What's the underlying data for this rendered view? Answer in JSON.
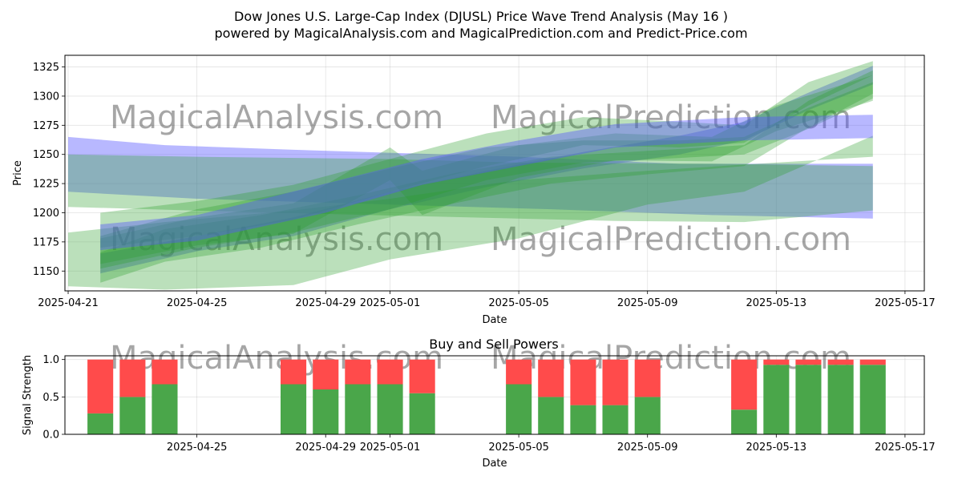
{
  "title_line1": "Dow Jones U.S. Large-Cap Index (DJUSL) Price Wave Trend Analysis (May 16 )",
  "title_line2": "powered by MagicalAnalysis.com and MagicalPrediction.com and Predict-Price.com",
  "watermarks": [
    "MagicalAnalysis.com",
    "MagicalPrediction.com"
  ],
  "colors": {
    "green": "#2ca02c",
    "blue": "#5555ff",
    "buy": "#4aa64a",
    "sell": "#ff4b4b"
  },
  "chart_data": [
    {
      "type": "area",
      "title": "",
      "xlabel": "Date",
      "ylabel": "Price",
      "x_axis": "date",
      "xlim": [
        "2025-04-21",
        "2025-05-17"
      ],
      "ylim": [
        1133,
        1335
      ],
      "x_ticks": [
        "2025-04-21",
        "2025-04-25",
        "2025-04-29",
        "2025-05-01",
        "2025-05-05",
        "2025-05-09",
        "2025-05-13",
        "2025-05-17"
      ],
      "y_ticks": [
        1150,
        1175,
        1200,
        1225,
        1250,
        1275,
        1300,
        1325
      ],
      "grid": true,
      "series": [
        {
          "color": "blue",
          "upper": [
            [
              "2025-04-21",
              1265
            ],
            [
              "2025-04-24",
              1258
            ],
            [
              "2025-04-28",
              1254
            ],
            [
              "2025-05-05",
              1248
            ],
            [
              "2025-05-10",
              1242
            ],
            [
              "2025-05-16",
              1242
            ]
          ],
          "lower": [
            [
              "2025-04-21",
              1218
            ],
            [
              "2025-04-25",
              1212
            ],
            [
              "2025-05-01",
              1207
            ],
            [
              "2025-05-06",
              1203
            ],
            [
              "2025-05-11",
              1198
            ],
            [
              "2025-05-16",
              1195
            ]
          ]
        },
        {
          "color": "blue",
          "upper": [
            [
              "2025-04-22",
              1165
            ],
            [
              "2025-04-25",
              1180
            ],
            [
              "2025-04-28",
              1196
            ],
            [
              "2025-05-01",
              1218
            ],
            [
              "2025-05-04",
              1236
            ],
            [
              "2025-05-07",
              1252
            ],
            [
              "2025-05-10",
              1266
            ],
            [
              "2025-05-12",
              1278
            ],
            [
              "2025-05-14",
              1303
            ],
            [
              "2025-05-16",
              1326
            ]
          ],
          "lower": [
            [
              "2025-04-22",
              1148
            ],
            [
              "2025-04-25",
              1167
            ],
            [
              "2025-04-28",
              1180
            ],
            [
              "2025-05-01",
              1203
            ],
            [
              "2025-05-04",
              1222
            ],
            [
              "2025-05-07",
              1238
            ],
            [
              "2025-05-10",
              1250
            ],
            [
              "2025-05-12",
              1262
            ],
            [
              "2025-05-14",
              1288
            ],
            [
              "2025-05-16",
              1310
            ]
          ]
        },
        {
          "color": "green",
          "upper": [
            [
              "2025-04-21",
              1250
            ],
            [
              "2025-04-25",
              1248
            ],
            [
              "2025-05-01",
              1246
            ],
            [
              "2025-05-05",
              1243
            ],
            [
              "2025-05-11",
              1242
            ],
            [
              "2025-05-16",
              1240
            ]
          ],
          "lower": [
            [
              "2025-04-21",
              1205
            ],
            [
              "2025-04-26",
              1201
            ],
            [
              "2025-05-02",
              1197
            ],
            [
              "2025-05-08",
              1193
            ],
            [
              "2025-05-12",
              1192
            ],
            [
              "2025-05-16",
              1202
            ]
          ]
        },
        {
          "color": "green",
          "upper": [
            [
              "2025-04-21",
              1183
            ],
            [
              "2025-04-24",
              1192
            ],
            [
              "2025-04-28",
              1202
            ],
            [
              "2025-05-01",
              1212
            ],
            [
              "2025-05-05",
              1228
            ],
            [
              "2025-05-09",
              1236
            ],
            [
              "2025-05-13",
              1243
            ],
            [
              "2025-05-16",
              1248
            ]
          ],
          "lower": [
            [
              "2025-04-21",
              1137
            ],
            [
              "2025-04-24",
              1134
            ],
            [
              "2025-04-28",
              1138
            ],
            [
              "2025-05-01",
              1160
            ],
            [
              "2025-05-05",
              1178
            ],
            [
              "2025-05-09",
              1207
            ],
            [
              "2025-05-12",
              1218
            ],
            [
              "2025-05-16",
              1266
            ]
          ]
        },
        {
          "color": "green",
          "upper": [
            [
              "2025-04-22",
              1180
            ],
            [
              "2025-04-25",
              1203
            ],
            [
              "2025-04-28",
              1218
            ],
            [
              "2025-05-01",
              1238
            ],
            [
              "2025-05-04",
              1256
            ],
            [
              "2025-05-07",
              1262
            ],
            [
              "2025-05-10",
              1262
            ],
            [
              "2025-05-12",
              1265
            ],
            [
              "2025-05-14",
              1290
            ],
            [
              "2025-05-16",
              1312
            ]
          ],
          "lower": [
            [
              "2025-04-22",
              1152
            ],
            [
              "2025-04-25",
              1170
            ],
            [
              "2025-04-28",
              1183
            ],
            [
              "2025-05-01",
              1203
            ],
            [
              "2025-05-04",
              1228
            ],
            [
              "2025-05-07",
              1243
            ],
            [
              "2025-05-10",
              1247
            ],
            [
              "2025-05-12",
              1250
            ],
            [
              "2025-05-14",
              1272
            ],
            [
              "2025-05-16",
              1298
            ]
          ]
        },
        {
          "color": "green",
          "upper": [
            [
              "2025-04-22",
              1200
            ],
            [
              "2025-04-25",
              1210
            ],
            [
              "2025-04-28",
              1224
            ],
            [
              "2025-05-01",
              1246
            ],
            [
              "2025-05-04",
              1268
            ],
            [
              "2025-05-07",
              1282
            ],
            [
              "2025-05-10",
              1278
            ],
            [
              "2025-05-12",
              1275
            ],
            [
              "2025-05-14",
              1312
            ],
            [
              "2025-05-16",
              1330
            ]
          ],
          "lower": [
            [
              "2025-04-22",
              1170
            ],
            [
              "2025-04-25",
              1180
            ],
            [
              "2025-04-28",
              1194
            ],
            [
              "2025-05-01",
              1218
            ],
            [
              "2025-05-04",
              1240
            ],
            [
              "2025-05-07",
              1258
            ],
            [
              "2025-05-10",
              1256
            ],
            [
              "2025-05-12",
              1260
            ],
            [
              "2025-05-14",
              1292
            ],
            [
              "2025-05-16",
              1318
            ]
          ]
        },
        {
          "color": "green",
          "upper": [
            [
              "2025-04-22",
              1166
            ],
            [
              "2025-04-24",
              1186
            ],
            [
              "2025-04-27",
              1198
            ],
            [
              "2025-04-30",
              1215
            ],
            [
              "2025-05-03",
              1234
            ],
            [
              "2025-05-06",
              1248
            ],
            [
              "2025-05-09",
              1253
            ],
            [
              "2025-05-12",
              1258
            ],
            [
              "2025-05-14",
              1296
            ],
            [
              "2025-05-16",
              1322
            ]
          ],
          "lower": [
            [
              "2025-04-22",
              1140
            ],
            [
              "2025-04-24",
              1158
            ],
            [
              "2025-04-27",
              1170
            ],
            [
              "2025-04-30",
              1190
            ],
            [
              "2025-05-03",
              1208
            ],
            [
              "2025-05-06",
              1225
            ],
            [
              "2025-05-09",
              1233
            ],
            [
              "2025-05-12",
              1240
            ],
            [
              "2025-05-14",
              1273
            ],
            [
              "2025-05-16",
              1302
            ]
          ]
        },
        {
          "color": "green",
          "upper": [
            [
              "2025-04-22",
              1178
            ],
            [
              "2025-04-25",
              1196
            ],
            [
              "2025-04-28",
              1208
            ],
            [
              "2025-05-01",
              1256
            ],
            [
              "2025-05-02",
              1236
            ],
            [
              "2025-05-05",
              1258
            ],
            [
              "2025-05-08",
              1268
            ],
            [
              "2025-05-11",
              1265
            ],
            [
              "2025-05-13",
              1292
            ],
            [
              "2025-05-16",
              1318
            ]
          ],
          "lower": [
            [
              "2025-04-22",
              1156
            ],
            [
              "2025-04-25",
              1172
            ],
            [
              "2025-04-28",
              1182
            ],
            [
              "2025-05-01",
              1228
            ],
            [
              "2025-05-02",
              1198
            ],
            [
              "2025-05-05",
              1230
            ],
            [
              "2025-05-08",
              1245
            ],
            [
              "2025-05-11",
              1244
            ],
            [
              "2025-05-13",
              1270
            ],
            [
              "2025-05-16",
              1296
            ]
          ]
        },
        {
          "color": "blue",
          "upper": [
            [
              "2025-04-22",
              1190
            ],
            [
              "2025-04-25",
              1198
            ],
            [
              "2025-04-29",
              1225
            ],
            [
              "2025-05-02",
              1246
            ],
            [
              "2025-05-05",
              1262
            ],
            [
              "2025-05-08",
              1276
            ],
            [
              "2025-05-12",
              1282
            ],
            [
              "2025-05-16",
              1284
            ]
          ],
          "lower": [
            [
              "2025-04-22",
              1168
            ],
            [
              "2025-04-25",
              1176
            ],
            [
              "2025-04-29",
              1200
            ],
            [
              "2025-05-02",
              1224
            ],
            [
              "2025-05-05",
              1240
            ],
            [
              "2025-05-08",
              1256
            ],
            [
              "2025-05-12",
              1262
            ],
            [
              "2025-05-16",
              1264
            ]
          ]
        }
      ]
    },
    {
      "type": "bar",
      "stacked": true,
      "title": "Buy and Sell Powers",
      "xlabel": "Date",
      "ylabel": "Signal Strength",
      "x_axis": "date",
      "xlim": [
        "2025-04-21",
        "2025-05-17"
      ],
      "ylim": [
        0,
        1.05
      ],
      "x_ticks": [
        "2025-04-25",
        "2025-04-29",
        "2025-05-01",
        "2025-05-05",
        "2025-05-09",
        "2025-05-13",
        "2025-05-17"
      ],
      "y_ticks": [
        "0.0",
        "0.5",
        "1.0"
      ],
      "grid": true,
      "dates": [
        "2025-04-22",
        "2025-04-23",
        "2025-04-24",
        "2025-04-28",
        "2025-04-29",
        "2025-04-30",
        "2025-05-01",
        "2025-05-02",
        "2025-05-05",
        "2025-05-06",
        "2025-05-07",
        "2025-05-08",
        "2025-05-09",
        "2025-05-12",
        "2025-05-13",
        "2025-05-14",
        "2025-05-15",
        "2025-05-16"
      ],
      "buy": [
        0.28,
        0.5,
        0.67,
        0.67,
        0.6,
        0.67,
        0.67,
        0.55,
        0.67,
        0.5,
        0.39,
        0.39,
        0.5,
        0.33,
        0.93,
        0.93,
        0.93,
        0.93
      ],
      "sell": [
        0.72,
        0.5,
        0.33,
        0.33,
        0.4,
        0.33,
        0.33,
        0.45,
        0.33,
        0.5,
        0.61,
        0.61,
        0.5,
        0.67,
        0.07,
        0.07,
        0.07,
        0.07
      ]
    }
  ]
}
